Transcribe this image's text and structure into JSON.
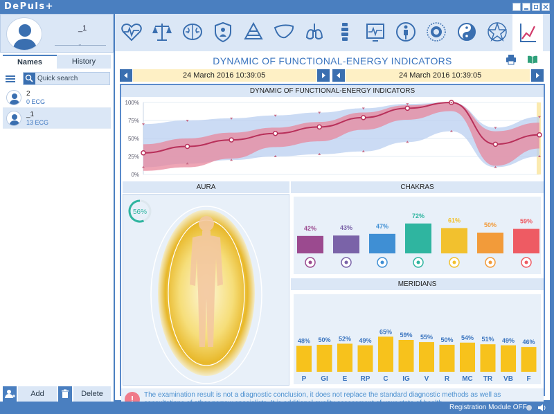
{
  "app": {
    "title": "DePuls+"
  },
  "user": {
    "name": "_1"
  },
  "sidebar": {
    "tabs": [
      "Names",
      "History"
    ],
    "search_placeholder": "Quick search",
    "patients": [
      {
        "name": "2",
        "ecg": "0 ECG"
      },
      {
        "name": "_1",
        "ecg": "13 ECG"
      }
    ],
    "add_label": "Add",
    "delete_label": "Delete"
  },
  "toolbar": {
    "icons": [
      "heart-pulse-icon",
      "scales-icon",
      "brain-icon",
      "shield-icon",
      "pyramid-icon",
      "liver-icon",
      "lungs-icon",
      "spine-icon",
      "ecg-monitor-icon",
      "body-silhouette-icon",
      "sun-mandala-icon",
      "yin-yang-icon",
      "chakra-star-icon",
      "trend-chart-icon"
    ],
    "active_index": 13
  },
  "page": {
    "title": "DYNAMIC OF FUNCTIONAL-ENERGY INDICATORS",
    "date_left": "24 March 2016 10:39:05",
    "date_right": "24 March 2016 10:39:05"
  },
  "chart_data": [
    {
      "type": "area",
      "title": "DYNAMIC OF FUNCTIONAL-ENERGY INDICATORS",
      "yticks": [
        "100%",
        "75%",
        "50%",
        "25%",
        "0%"
      ],
      "ylim": [
        0,
        100
      ],
      "x": [
        0,
        1,
        2,
        3,
        4,
        5,
        6,
        7,
        8,
        9
      ],
      "series": [
        {
          "values": [
            30,
            39,
            48,
            57,
            66,
            79,
            92,
            100,
            42,
            55
          ]
        }
      ],
      "band_upper": [
        42,
        50,
        58,
        65,
        73,
        86,
        96,
        100,
        60,
        72
      ],
      "band_lower": [
        5,
        10,
        22,
        38,
        46,
        62,
        76,
        88,
        12,
        36
      ],
      "range_upper": [
        70,
        75,
        78,
        82,
        86,
        92,
        98,
        100,
        65,
        80
      ],
      "range_lower": [
        10,
        15,
        20,
        25,
        28,
        32,
        45,
        60,
        10,
        25
      ]
    },
    {
      "type": "bar",
      "title": "CHAKRAS",
      "categories": [
        "1",
        "2",
        "3",
        "4",
        "5",
        "6",
        "7"
      ],
      "values": [
        42,
        43,
        47,
        72,
        61,
        50,
        59
      ],
      "labels": [
        "42%",
        "43%",
        "47%",
        "72%",
        "61%",
        "50%",
        "59%"
      ],
      "colors": [
        "#9b4a8f",
        "#7a63a8",
        "#3f8fd4",
        "#2fb5a0",
        "#f2c12e",
        "#f29b3a",
        "#ee5b63"
      ]
    },
    {
      "type": "bar",
      "title": "MERIDIANS",
      "categories": [
        "P",
        "GI",
        "E",
        "RP",
        "C",
        "IG",
        "V",
        "R",
        "MC",
        "TR",
        "VB",
        "F"
      ],
      "values": [
        48,
        50,
        52,
        49,
        65,
        59,
        55,
        50,
        54,
        51,
        49,
        46
      ],
      "labels": [
        "48%",
        "50%",
        "52%",
        "49%",
        "65%",
        "59%",
        "55%",
        "50%",
        "54%",
        "51%",
        "49%",
        "46%"
      ],
      "color": "#f7c21c"
    }
  ],
  "aura": {
    "title": "AURA",
    "percent": "56%",
    "value": 56
  },
  "disclaimer": "The examination result is not a diagnostic conclusion, it does not replace the standard diagnostic methods as well as consultations of other narrow specialists. It is additional quality assessment of your state of health.",
  "status": {
    "text": "Registration Module OFF"
  },
  "colors": {
    "accent": "#4a7fc0",
    "title": "#3a74bf",
    "band_pink": "#e8879c",
    "band_blue": "#b9cff0",
    "line": "#b8305a"
  }
}
